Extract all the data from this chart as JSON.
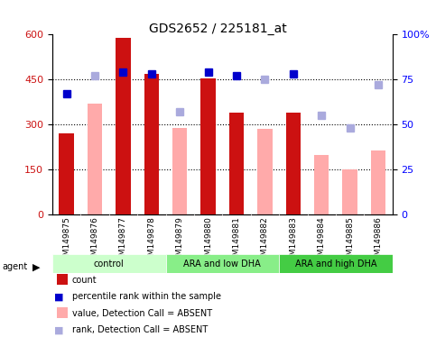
{
  "title": "GDS2652 / 225181_at",
  "samples": [
    "GSM149875",
    "GSM149876",
    "GSM149877",
    "GSM149878",
    "GSM149879",
    "GSM149880",
    "GSM149881",
    "GSM149882",
    "GSM149883",
    "GSM149884",
    "GSM149885",
    "GSM149886"
  ],
  "count_present": [
    270,
    null,
    590,
    470,
    null,
    455,
    340,
    null,
    340,
    null,
    null,
    null
  ],
  "count_absent": [
    null,
    370,
    null,
    null,
    290,
    null,
    null,
    285,
    null,
    200,
    150,
    215
  ],
  "rank_present": [
    67,
    null,
    79,
    78,
    null,
    79,
    77,
    null,
    78,
    null,
    null,
    null
  ],
  "rank_absent": [
    null,
    77,
    null,
    null,
    57,
    null,
    null,
    75,
    null,
    55,
    48,
    72
  ],
  "groups": [
    {
      "label": "control",
      "start": 0,
      "end": 4,
      "color": "#ccffcc"
    },
    {
      "label": "ARA and low DHA",
      "start": 4,
      "end": 8,
      "color": "#88ee88"
    },
    {
      "label": "ARA and high DHA",
      "start": 8,
      "end": 12,
      "color": "#44cc44"
    }
  ],
  "ylim_left": [
    0,
    600
  ],
  "ylim_right": [
    0,
    100
  ],
  "yticks_left": [
    0,
    150,
    300,
    450,
    600
  ],
  "yticks_right": [
    0,
    25,
    50,
    75,
    100
  ],
  "hlines": [
    150,
    300,
    450
  ],
  "bar_width": 0.35,
  "count_color": "#cc1111",
  "absent_bar_color": "#ffaaaa",
  "rank_present_color": "#0000cc",
  "rank_absent_color": "#aaaadd",
  "bg_color": "#f0f0f0",
  "plot_bg": "#ffffff",
  "agent_label": "agent",
  "legend_items": [
    {
      "label": "count",
      "color": "#cc1111",
      "type": "bar"
    },
    {
      "label": "percentile rank within the sample",
      "color": "#0000cc",
      "type": "square"
    },
    {
      "label": "value, Detection Call = ABSENT",
      "color": "#ffaaaa",
      "type": "bar"
    },
    {
      "label": "rank, Detection Call = ABSENT",
      "color": "#aaaadd",
      "type": "square"
    }
  ]
}
